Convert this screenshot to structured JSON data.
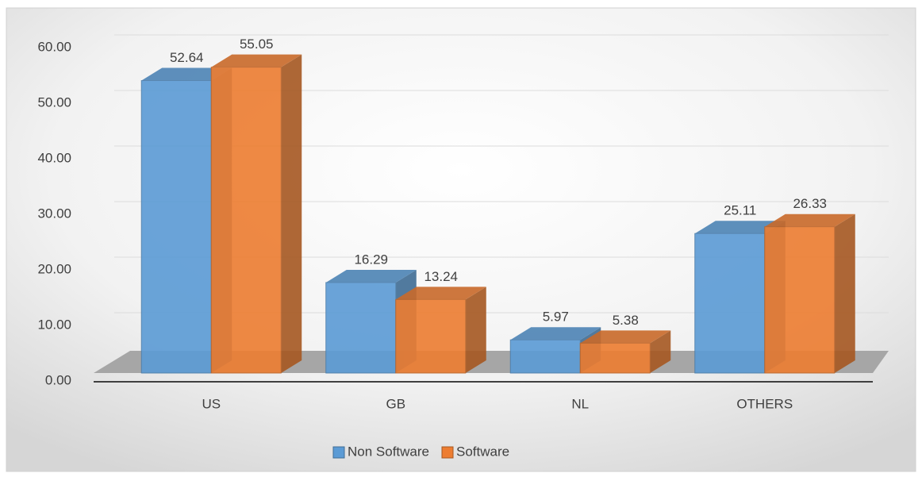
{
  "chart_data": {
    "type": "bar3d",
    "categories": [
      "US",
      "GB",
      "NL",
      "OTHERS"
    ],
    "series": [
      {
        "name": "Non Software",
        "color": "#5b9bd5",
        "values": [
          52.64,
          16.29,
          5.97,
          25.11
        ]
      },
      {
        "name": "Software",
        "color": "#ed7d31",
        "values": [
          55.05,
          13.24,
          5.38,
          26.33
        ]
      }
    ],
    "ylim": [
      0,
      60
    ],
    "yticks": [
      {
        "value": 0,
        "label": "0.00"
      },
      {
        "value": 10,
        "label": "10.00"
      },
      {
        "value": 20,
        "label": "20.00"
      },
      {
        "value": 30,
        "label": "30.00"
      },
      {
        "value": 40,
        "label": "40.00"
      },
      {
        "value": 50,
        "label": "50.00"
      },
      {
        "value": 60,
        "label": "60.00"
      }
    ],
    "grid": true,
    "legend": "bottom"
  }
}
